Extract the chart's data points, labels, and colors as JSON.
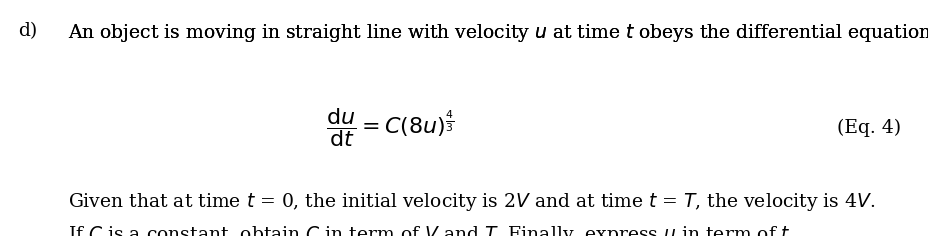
{
  "background_color": "#ffffff",
  "fig_width": 9.29,
  "fig_height": 2.36,
  "dpi": 100,
  "font_size_main": 13.5,
  "font_size_eq": 14,
  "text_color": "#000000"
}
